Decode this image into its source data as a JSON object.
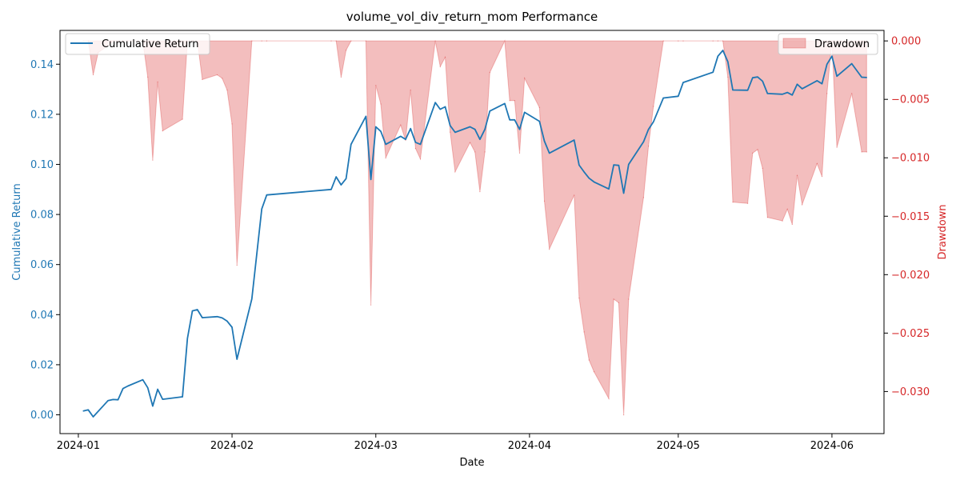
{
  "chart_data": {
    "type": "line",
    "title": "volume_vol_div_return_mom Performance",
    "xlabel": "Date",
    "ylabel": "Cumulative Return",
    "y2label": "Drawdown",
    "x_start": "2024-01-01",
    "xlim_days": [
      -3.7,
      97.5
    ],
    "ylim": [
      -0.0075,
      0.1535
    ],
    "y2lim": [
      -0.0336,
      0.0009
    ],
    "x_ticks": [
      {
        "day": 0,
        "label": "2024-01"
      },
      {
        "day": 31,
        "label": "2024-02"
      },
      {
        "day": 60,
        "label": "2024-03"
      },
      {
        "day": 91,
        "label": "2024-04"
      },
      {
        "day": 121,
        "label": "2024-05"
      },
      {
        "day": 152,
        "label": "2024-06"
      }
    ],
    "y_ticks": [
      0.0,
      0.02,
      0.04,
      0.06,
      0.08,
      0.1,
      0.12,
      0.14
    ],
    "y_tick_labels": [
      "0.00",
      "0.02",
      "0.04",
      "0.06",
      "0.08",
      "0.10",
      "0.12",
      "0.14"
    ],
    "y2_ticks": [
      0.0,
      -0.005,
      -0.01,
      -0.015,
      -0.02,
      -0.025,
      -0.03
    ],
    "y2_tick_labels": [
      "0.000",
      "−0.005",
      "−0.010",
      "−0.015",
      "−0.020",
      "−0.025",
      "−0.030"
    ],
    "legend_left": "top-left",
    "legend_right": "top-right",
    "series": [
      {
        "name": "Cumulative Return",
        "axis": "left",
        "kind": "line",
        "color": "#1f77b4",
        "points": [
          [
            1,
            0.0015
          ],
          [
            2,
            0.002
          ],
          [
            3,
            -0.0008
          ],
          [
            6,
            0.0057
          ],
          [
            7,
            0.0061
          ],
          [
            8,
            0.006
          ],
          [
            9,
            0.0105
          ],
          [
            10,
            0.0115
          ],
          [
            13,
            0.014
          ],
          [
            14,
            0.0108
          ],
          [
            15,
            0.0035
          ],
          [
            16,
            0.0102
          ],
          [
            17,
            0.0062
          ],
          [
            21,
            0.0072
          ],
          [
            22,
            0.0305
          ],
          [
            23,
            0.0415
          ],
          [
            24,
            0.042
          ],
          [
            25,
            0.0388
          ],
          [
            28,
            0.0392
          ],
          [
            29,
            0.0387
          ],
          [
            30,
            0.0374
          ],
          [
            31,
            0.035
          ],
          [
            32,
            0.0222
          ],
          [
            35,
            0.0463
          ],
          [
            37,
            0.0822
          ],
          [
            38,
            0.0878
          ],
          [
            51,
            0.09
          ],
          [
            52,
            0.095
          ],
          [
            53,
            0.0918
          ],
          [
            54,
            0.0943
          ],
          [
            55,
            0.108
          ],
          [
            58,
            0.1192
          ],
          [
            59,
            0.094
          ],
          [
            60,
            0.115
          ],
          [
            61,
            0.1132
          ],
          [
            62,
            0.108
          ],
          [
            65,
            0.1112
          ],
          [
            66,
            0.11
          ],
          [
            67,
            0.1143
          ],
          [
            68,
            0.1088
          ],
          [
            69,
            0.108
          ],
          [
            72,
            0.1247
          ],
          [
            73,
            0.122
          ],
          [
            74,
            0.123
          ],
          [
            75,
            0.1155
          ],
          [
            76,
            0.1128
          ],
          [
            79,
            0.115
          ],
          [
            80,
            0.114
          ],
          [
            81,
            0.11
          ],
          [
            82,
            0.114
          ],
          [
            83,
            0.1213
          ],
          [
            86,
            0.1243
          ],
          [
            87,
            0.1178
          ],
          [
            88,
            0.1178
          ],
          [
            89,
            0.114
          ],
          [
            90,
            0.1208
          ],
          [
            93,
            0.1172
          ],
          [
            94,
            0.1093
          ],
          [
            95,
            0.1045
          ],
          [
            100,
            0.1097
          ],
          [
            101,
            0.0997
          ],
          [
            102,
            0.097
          ],
          [
            103,
            0.0945
          ],
          [
            104,
            0.093
          ],
          [
            107,
            0.0902
          ],
          [
            108,
            0.0998
          ],
          [
            109,
            0.0996
          ],
          [
            110,
            0.0885
          ],
          [
            111,
            0.1
          ],
          [
            114,
            0.109
          ],
          [
            115,
            0.114
          ],
          [
            116,
            0.117
          ],
          [
            118,
            0.1265
          ],
          [
            121,
            0.1272
          ],
          [
            122,
            0.1327
          ],
          [
            128,
            0.1368
          ],
          [
            129,
            0.1432
          ],
          [
            130,
            0.1455
          ],
          [
            131,
            0.141
          ],
          [
            132,
            0.1297
          ],
          [
            135,
            0.1296
          ],
          [
            136,
            0.1346
          ],
          [
            137,
            0.1349
          ],
          [
            138,
            0.1332
          ],
          [
            139,
            0.1283
          ],
          [
            142,
            0.128
          ],
          [
            143,
            0.1287
          ],
          [
            144,
            0.1277
          ],
          [
            145,
            0.132
          ],
          [
            146,
            0.1302
          ],
          [
            149,
            0.1334
          ],
          [
            150,
            0.1322
          ],
          [
            151,
            0.14
          ],
          [
            152,
            0.1432
          ],
          [
            153,
            0.1352
          ],
          [
            156,
            0.1402
          ],
          [
            158,
            0.1348
          ],
          [
            159,
            0.1347
          ]
        ]
      },
      {
        "name": "Drawdown",
        "axis": "right",
        "kind": "area",
        "color": "#d62728",
        "points": [
          [
            1,
            0.0
          ],
          [
            2,
            0.0
          ],
          [
            3,
            -0.0029
          ],
          [
            4,
            -0.001
          ],
          [
            6,
            -0.0004
          ],
          [
            7,
            0.0
          ],
          [
            8,
            0.0
          ],
          [
            9,
            0.0
          ],
          [
            10,
            0.0
          ],
          [
            13,
            0.0
          ],
          [
            14,
            -0.0031
          ],
          [
            15,
            -0.0102
          ],
          [
            16,
            -0.0035
          ],
          [
            17,
            -0.0077
          ],
          [
            21,
            -0.0067
          ],
          [
            22,
            0.0
          ],
          [
            23,
            0.0
          ],
          [
            24,
            0.0
          ],
          [
            25,
            -0.0033
          ],
          [
            28,
            -0.0029
          ],
          [
            29,
            -0.0032
          ],
          [
            30,
            -0.0042
          ],
          [
            31,
            -0.0071
          ],
          [
            32,
            -0.0192
          ],
          [
            35,
            0.0
          ],
          [
            37,
            0.0
          ],
          [
            38,
            0.0
          ],
          [
            51,
            0.0
          ],
          [
            52,
            0.0
          ],
          [
            53,
            -0.0031
          ],
          [
            54,
            -0.0008
          ],
          [
            55,
            0.0
          ],
          [
            58,
            0.0
          ],
          [
            59,
            -0.0226
          ],
          [
            60,
            -0.0038
          ],
          [
            61,
            -0.0054
          ],
          [
            62,
            -0.01
          ],
          [
            65,
            -0.0072
          ],
          [
            66,
            -0.0085
          ],
          [
            67,
            -0.0042
          ],
          [
            68,
            -0.0092
          ],
          [
            69,
            -0.0101
          ],
          [
            72,
            0.0
          ],
          [
            73,
            -0.0022
          ],
          [
            74,
            -0.0014
          ],
          [
            75,
            -0.0078
          ],
          [
            76,
            -0.0112
          ],
          [
            79,
            -0.0087
          ],
          [
            80,
            -0.0095
          ],
          [
            81,
            -0.0129
          ],
          [
            82,
            -0.0095
          ],
          [
            83,
            -0.0027
          ],
          [
            86,
            0.0
          ],
          [
            87,
            -0.0051
          ],
          [
            88,
            -0.0051
          ],
          [
            89,
            -0.0096
          ],
          [
            90,
            -0.0032
          ],
          [
            93,
            -0.0057
          ],
          [
            94,
            -0.0137
          ],
          [
            95,
            -0.0178
          ],
          [
            100,
            -0.0132
          ],
          [
            101,
            -0.022
          ],
          [
            102,
            -0.0249
          ],
          [
            103,
            -0.0273
          ],
          [
            104,
            -0.0283
          ],
          [
            107,
            -0.0306
          ],
          [
            108,
            -0.0221
          ],
          [
            109,
            -0.0224
          ],
          [
            110,
            -0.032
          ],
          [
            111,
            -0.0221
          ],
          [
            114,
            -0.0134
          ],
          [
            115,
            -0.009
          ],
          [
            116,
            -0.0056
          ],
          [
            118,
            0.0
          ],
          [
            121,
            0.0
          ],
          [
            122,
            0.0
          ],
          [
            128,
            0.0
          ],
          [
            129,
            0.0
          ],
          [
            130,
            0.0
          ],
          [
            131,
            -0.0031
          ],
          [
            132,
            -0.0138
          ],
          [
            135,
            -0.0139
          ],
          [
            136,
            -0.0096
          ],
          [
            137,
            -0.0093
          ],
          [
            138,
            -0.0109
          ],
          [
            139,
            -0.0151
          ],
          [
            142,
            -0.0154
          ],
          [
            143,
            -0.0144
          ],
          [
            144,
            -0.0157
          ],
          [
            145,
            -0.0115
          ],
          [
            146,
            -0.014
          ],
          [
            149,
            -0.0105
          ],
          [
            150,
            -0.0116
          ],
          [
            151,
            -0.0045
          ],
          [
            152,
            0.0
          ],
          [
            153,
            -0.0091
          ],
          [
            156,
            -0.0045
          ],
          [
            158,
            -0.0095
          ],
          [
            159,
            -0.0095
          ]
        ]
      }
    ]
  }
}
